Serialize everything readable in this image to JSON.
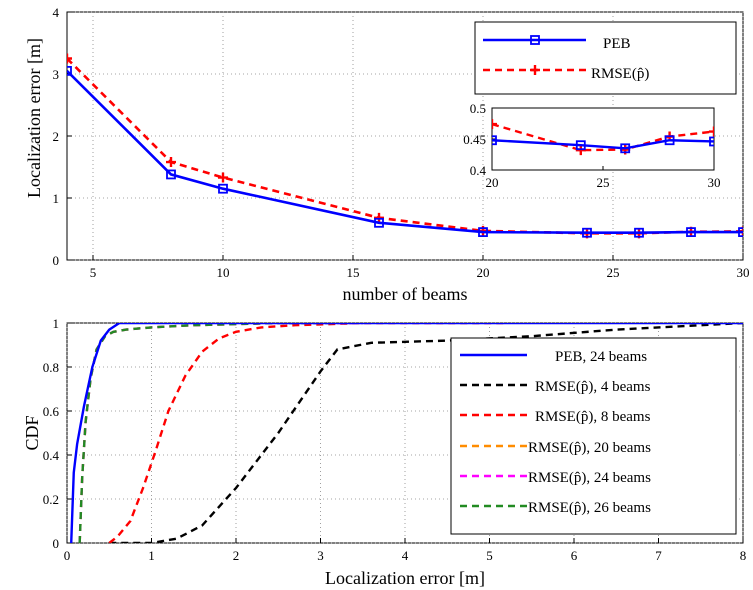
{
  "chart_data": [
    {
      "type": "line",
      "xlabel": "number of beams",
      "ylabel": "Localization error [m]",
      "xlim": [
        4,
        30
      ],
      "ylim": [
        0,
        4
      ],
      "xticks": [
        "5",
        "10",
        "15",
        "20",
        "25",
        "30"
      ],
      "yticks": [
        "0",
        "1",
        "2",
        "3",
        "4"
      ],
      "grid": true,
      "legend_position": "top-right",
      "series": [
        {
          "name": "PEB",
          "color": "#0000ff",
          "style": "solid",
          "marker": "square",
          "x": [
            4,
            8,
            10,
            16,
            20,
            24,
            26,
            28,
            30
          ],
          "y": [
            3.05,
            1.38,
            1.15,
            0.6,
            0.45,
            0.44,
            0.44,
            0.45,
            0.45
          ]
        },
        {
          "name": "RMSE(p̂)",
          "color": "#ff0000",
          "style": "dashed",
          "marker": "plus",
          "x": [
            4,
            8,
            10,
            16,
            20,
            24,
            26,
            28,
            30
          ],
          "y": [
            3.25,
            1.58,
            1.33,
            0.68,
            0.47,
            0.43,
            0.43,
            0.455,
            0.462
          ]
        }
      ],
      "inset": {
        "xlim": [
          20,
          30
        ],
        "ylim": [
          0.4,
          0.5
        ],
        "xticks": [
          "20",
          "25",
          "30"
        ],
        "yticks": [
          "0.4",
          "0.45",
          "0.5"
        ],
        "series": [
          {
            "name": "PEB",
            "x": [
              20,
              24,
              26,
              28,
              30
            ],
            "y": [
              0.448,
              0.44,
              0.435,
              0.448,
              0.446
            ]
          },
          {
            "name": "RMSE(p̂)",
            "x": [
              20,
              24,
              26,
              28,
              30
            ],
            "y": [
              0.474,
              0.432,
              0.433,
              0.454,
              0.462
            ]
          }
        ]
      }
    },
    {
      "type": "line",
      "xlabel": "Localization error [m]",
      "ylabel": "CDF",
      "xlim": [
        0,
        8
      ],
      "ylim": [
        0,
        1
      ],
      "xticks": [
        "0",
        "1",
        "2",
        "3",
        "4",
        "5",
        "6",
        "7",
        "8"
      ],
      "yticks": [
        "0",
        "0.2",
        "0.4",
        "0.6",
        "0.8",
        "1"
      ],
      "grid": true,
      "legend_position": "bottom-right",
      "series": [
        {
          "name": "PEB, 24 beams",
          "color": "#0000ff",
          "style": "solid",
          "x": [
            0.05,
            0.08,
            0.12,
            0.2,
            0.3,
            0.4,
            0.5,
            0.62,
            0.7,
            8
          ],
          "y": [
            0,
            0.32,
            0.45,
            0.62,
            0.8,
            0.92,
            0.97,
            1.0,
            1.0,
            1.0
          ]
        },
        {
          "name": "RMSE(p̂), 4 beams",
          "color": "#000000",
          "style": "dashed",
          "x": [
            0.5,
            1.0,
            1.3,
            1.6,
            2.0,
            2.5,
            3.0,
            3.2,
            3.6,
            4.5,
            5.5,
            6.5,
            7.5,
            8.0
          ],
          "y": [
            0,
            0.0,
            0.02,
            0.08,
            0.25,
            0.5,
            0.78,
            0.88,
            0.91,
            0.92,
            0.94,
            0.97,
            0.99,
            1.0
          ]
        },
        {
          "name": "RMSE(p̂), 8 beams",
          "color": "#ff0000",
          "style": "dashed",
          "x": [
            0.5,
            0.6,
            0.75,
            0.9,
            1.05,
            1.2,
            1.4,
            1.6,
            1.8,
            2.0,
            2.3,
            2.7,
            3.5,
            5.2
          ],
          "y": [
            0,
            0.03,
            0.1,
            0.25,
            0.42,
            0.6,
            0.76,
            0.87,
            0.93,
            0.96,
            0.98,
            0.99,
            1.0,
            1.0
          ]
        },
        {
          "name": "RMSE(p̂), 20 beams",
          "color": "#ff8c00",
          "style": "dashed",
          "x": [
            0.15,
            0.18,
            0.22,
            0.28,
            0.35,
            0.45,
            0.55,
            0.7,
            1.0,
            1.5,
            2.5,
            3.5
          ],
          "y": [
            0,
            0.3,
            0.55,
            0.75,
            0.88,
            0.94,
            0.96,
            0.97,
            0.98,
            0.99,
            1.0,
            1.0
          ]
        },
        {
          "name": "RMSE(p̂), 24 beams",
          "color": "#ff00ff",
          "style": "dashed",
          "x": [
            0.15,
            0.18,
            0.22,
            0.28,
            0.35,
            0.45,
            0.55,
            0.7,
            1.0,
            1.5,
            2.5,
            3.5
          ],
          "y": [
            0,
            0.3,
            0.55,
            0.75,
            0.88,
            0.94,
            0.96,
            0.97,
            0.98,
            0.99,
            1.0,
            1.0
          ]
        },
        {
          "name": "RMSE(p̂), 26 beams",
          "color": "#228b22",
          "style": "dashed",
          "x": [
            0.15,
            0.18,
            0.22,
            0.28,
            0.35,
            0.45,
            0.55,
            0.7,
            1.0,
            1.5,
            2.5,
            3.2
          ],
          "y": [
            0,
            0.3,
            0.55,
            0.75,
            0.88,
            0.94,
            0.96,
            0.97,
            0.98,
            0.99,
            1.0,
            1.0
          ]
        }
      ]
    }
  ]
}
